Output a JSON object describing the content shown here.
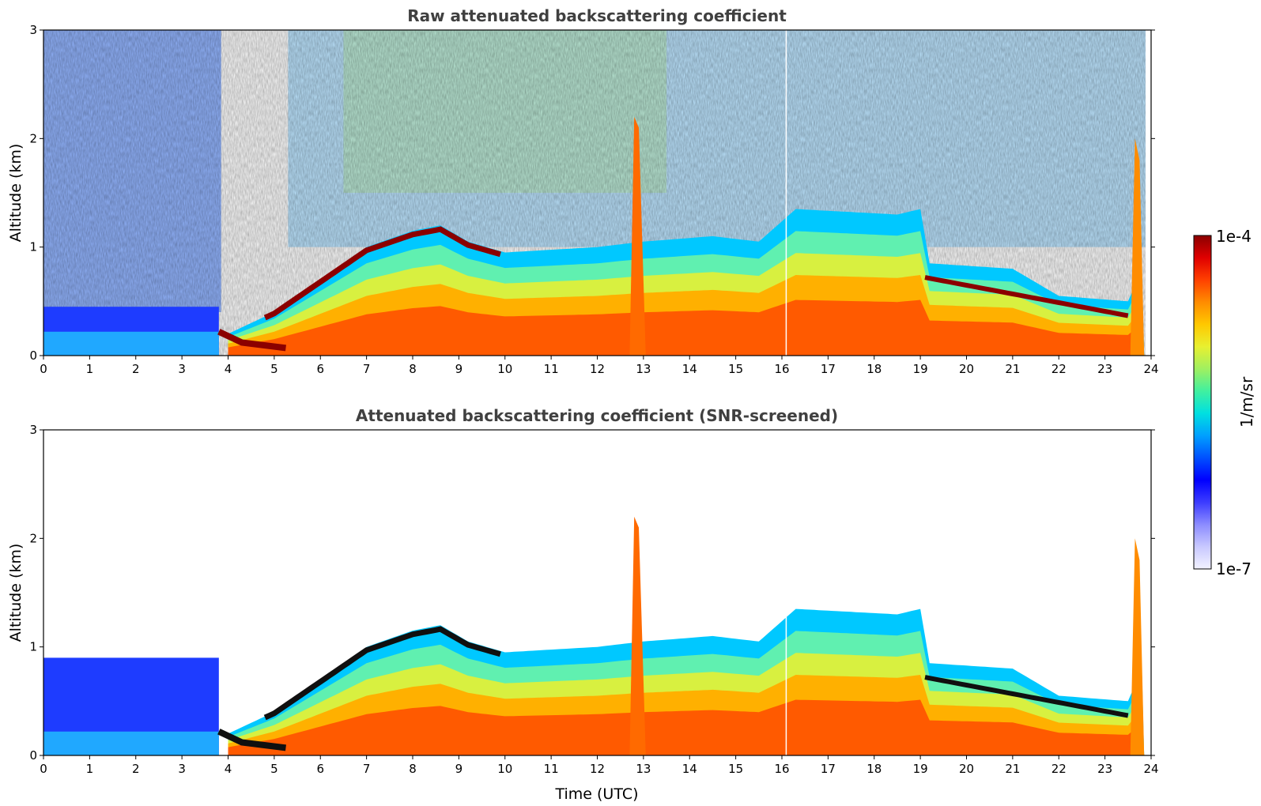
{
  "chart_data": [
    {
      "type": "heatmap",
      "title": "Raw attenuated backscattering coefficient",
      "xlabel": "",
      "ylabel": "Altitude (km)",
      "xlim": [
        0,
        24
      ],
      "ylim": [
        0,
        3
      ],
      "xticks": [
        "0",
        "1",
        "2",
        "3",
        "4",
        "5",
        "6",
        "7",
        "8",
        "9",
        "10",
        "11",
        "12",
        "13",
        "14",
        "15",
        "16",
        "17",
        "18",
        "19",
        "20",
        "21",
        "22",
        "23",
        "24"
      ],
      "yticks": [
        "0",
        "1",
        "2",
        "3"
      ],
      "boundary_layer_top_km": [
        {
          "t": 0,
          "h": 0.45
        },
        {
          "t": 3.8,
          "h": 0.4
        },
        {
          "t": 4.0,
          "h": 0.2
        },
        {
          "t": 5.0,
          "h": 0.4
        },
        {
          "t": 6.0,
          "h": 0.7
        },
        {
          "t": 7.0,
          "h": 1.0
        },
        {
          "t": 8.0,
          "h": 1.15
        },
        {
          "t": 8.6,
          "h": 1.2
        },
        {
          "t": 9.2,
          "h": 1.05
        },
        {
          "t": 10.0,
          "h": 0.95
        },
        {
          "t": 12.0,
          "h": 1.0
        },
        {
          "t": 13.0,
          "h": 1.05
        },
        {
          "t": 14.5,
          "h": 1.1
        },
        {
          "t": 15.5,
          "h": 1.05
        },
        {
          "t": 16.3,
          "h": 1.35
        },
        {
          "t": 18.5,
          "h": 1.3
        },
        {
          "t": 19.0,
          "h": 1.35
        },
        {
          "t": 19.2,
          "h": 0.85
        },
        {
          "t": 21.0,
          "h": 0.8
        },
        {
          "t": 22.0,
          "h": 0.55
        },
        {
          "t": 23.5,
          "h": 0.5
        },
        {
          "t": 23.8,
          "h": 0.8
        }
      ]
    },
    {
      "type": "heatmap",
      "title": "Attenuated backscattering coefficient (SNR-screened)",
      "xlabel": "Time (UTC)",
      "ylabel": "Altitude (km)",
      "xlim": [
        0,
        24
      ],
      "ylim": [
        0,
        3
      ],
      "xticks": [
        "0",
        "1",
        "2",
        "3",
        "4",
        "5",
        "6",
        "7",
        "8",
        "9",
        "10",
        "11",
        "12",
        "13",
        "14",
        "15",
        "16",
        "17",
        "18",
        "19",
        "20",
        "21",
        "22",
        "23",
        "24"
      ],
      "yticks": [
        "0",
        "1",
        "2",
        "3"
      ]
    }
  ],
  "colorbar": {
    "label": "1/m/sr",
    "max_label": "1e-4",
    "min_label": "1e-7",
    "colors": [
      "#f2f2ff",
      "#c8c8ff",
      "#8c8cff",
      "#3c3cff",
      "#0000ff",
      "#0050ff",
      "#00a0ff",
      "#00e0e0",
      "#40f0a0",
      "#a0f060",
      "#e8f030",
      "#ffc800",
      "#ff8c00",
      "#ff4000",
      "#e00000",
      "#8b0000"
    ]
  }
}
